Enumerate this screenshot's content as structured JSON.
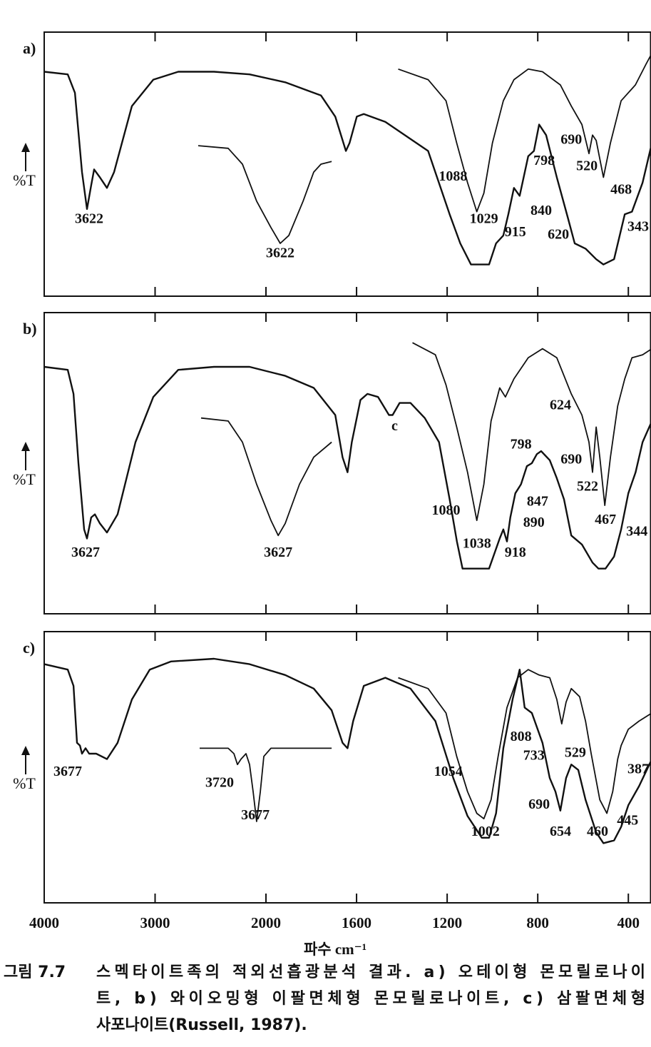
{
  "chart_data": [
    {
      "type": "line",
      "title": "a)",
      "ylabel": "%T",
      "xlim": [
        4000,
        300
      ],
      "x_scale_break": 2000,
      "ylim": [
        0,
        100
      ],
      "xticks": [
        4000,
        3000,
        2000,
        1600,
        1200,
        800,
        400
      ],
      "series": [
        {
          "color": "#111111",
          "x": [
            4000,
            3788,
            3723,
            3659,
            3614,
            3576,
            3550,
            3498,
            3434,
            3370,
            3209,
            3016,
            2791,
            2469,
            2148,
            1915,
            1757,
            1694,
            1647,
            1631,
            1599,
            1568,
            1473,
            1284,
            1189,
            1142,
            1095,
            1015,
            984,
            952,
            930,
            905,
            880,
            842,
            817,
            794,
            763,
            716,
            668,
            637,
            589,
            542,
            510,
            463,
            416,
            384,
            337,
            296
          ],
          "values": [
            85,
            84,
            77,
            47,
            33,
            42,
            48,
            45,
            41,
            47,
            72,
            82,
            85,
            85,
            84,
            81,
            76,
            68,
            55,
            58,
            68,
            69,
            66,
            55,
            31,
            20,
            12,
            12,
            20,
            23,
            31,
            41,
            38,
            53,
            55,
            65,
            61,
            45,
            30,
            20,
            18,
            14,
            12,
            14,
            31,
            32,
            43,
            58
          ]
        },
        {
          "color": "#111111",
          "x": [
            1416,
            1284,
            1205,
            1158,
            1110,
            1069,
            1038,
            1000,
            952,
            905,
            842,
            779,
            700,
            652,
            605,
            574,
            558,
            542,
            510,
            479,
            432,
            369,
            321,
            296
          ],
          "values": [
            86,
            82,
            74,
            58,
            43,
            32,
            39,
            58,
            74,
            82,
            86,
            85,
            80,
            72,
            65,
            54,
            61,
            59,
            45,
            58,
            74,
            80,
            88,
            92
          ]
        },
        {
          "color": "#111111",
          "x": [
            2611,
            2341,
            2212,
            2084,
            1978,
            1937,
            1899,
            1836,
            1789,
            1757,
            1710
          ],
          "values": [
            57,
            56,
            50,
            36,
            26,
            20,
            23,
            36,
            47,
            50,
            51
          ]
        }
      ],
      "annotations": [
        {
          "text": "3622",
          "x": 3595,
          "y": 29
        },
        {
          "text": "3622",
          "x": 1937,
          "y": 16
        },
        {
          "text": "1088",
          "x": 1174,
          "y": 45
        },
        {
          "text": "1029",
          "x": 1038,
          "y": 29
        },
        {
          "text": "915",
          "x": 899,
          "y": 24
        },
        {
          "text": "840",
          "x": 785,
          "y": 32
        },
        {
          "text": "620",
          "x": 709,
          "y": 23
        },
        {
          "text": "798",
          "x": 772,
          "y": 51
        },
        {
          "text": "690",
          "x": 652,
          "y": 59
        },
        {
          "text": "520",
          "x": 583,
          "y": 49
        },
        {
          "text": "468",
          "x": 432,
          "y": 40
        },
        {
          "text": "343",
          "x": 346,
          "y": 26
        }
      ]
    },
    {
      "type": "line",
      "title": "b)",
      "ylabel": "%T",
      "xlim": [
        4000,
        300
      ],
      "x_scale_break": 2000,
      "ylim": [
        0,
        100
      ],
      "xticks": [
        4000,
        3000,
        2000,
        1600,
        1200,
        800,
        400
      ],
      "series": [
        {
          "color": "#111111",
          "x": [
            4000,
            3788,
            3736,
            3691,
            3640,
            3614,
            3576,
            3543,
            3498,
            3434,
            3338,
            3177,
            3016,
            2791,
            2469,
            2148,
            1915,
            1789,
            1694,
            1662,
            1640,
            1621,
            1583,
            1552,
            1505,
            1457,
            1441,
            1410,
            1362,
            1299,
            1236,
            1189,
            1157,
            1132,
            1079,
            1015,
            968,
            952,
            936,
            921,
            899,
            874,
            848,
            826,
            804,
            785,
            747,
            716,
            684,
            652,
            605,
            558,
            532,
            501,
            463,
            432,
            400,
            368,
            337,
            296
          ],
          "values": [
            82,
            81,
            73,
            50,
            28,
            25,
            32,
            33,
            30,
            27,
            33,
            57,
            72,
            81,
            82,
            82,
            79,
            75,
            66,
            52,
            47,
            57,
            71,
            73,
            72,
            66,
            66,
            70,
            70,
            65,
            57,
            38,
            24,
            15,
            15,
            15,
            25,
            28,
            24,
            32,
            40,
            43,
            49,
            50,
            53,
            54,
            51,
            45,
            38,
            26,
            23,
            17,
            15,
            15,
            19,
            28,
            40,
            47,
            57,
            64
          ]
        },
        {
          "color": "#111111",
          "x": [
            1353,
            1252,
            1205,
            1158,
            1110,
            1069,
            1038,
            1006,
            968,
            943,
            905,
            842,
            779,
            716,
            652,
            605,
            574,
            558,
            542,
            526,
            504,
            479,
            447,
            416,
            384,
            337,
            296
          ],
          "values": [
            90,
            86,
            76,
            62,
            47,
            31,
            43,
            64,
            75,
            72,
            78,
            85,
            88,
            85,
            73,
            66,
            57,
            47,
            62,
            52,
            36,
            52,
            69,
            78,
            85,
            86,
            88
          ]
        },
        {
          "color": "#111111",
          "x": [
            2585,
            2341,
            2212,
            2084,
            1978,
            1946,
            1915,
            1852,
            1789,
            1710
          ],
          "values": [
            65,
            64,
            57,
            43,
            31,
            26,
            30,
            43,
            52,
            57
          ]
        }
      ],
      "annotations": [
        {
          "text": "3627",
          "x": 3627,
          "y": 20
        },
        {
          "text": "3627",
          "x": 1946,
          "y": 20
        },
        {
          "text": "c",
          "x": 1432,
          "y": 62
        },
        {
          "text": "1080",
          "x": 1205,
          "y": 34
        },
        {
          "text": "1038",
          "x": 1069,
          "y": 23
        },
        {
          "text": "918",
          "x": 899,
          "y": 20
        },
        {
          "text": "890",
          "x": 817,
          "y": 30
        },
        {
          "text": "847",
          "x": 801,
          "y": 37
        },
        {
          "text": "798",
          "x": 874,
          "y": 56
        },
        {
          "text": "690",
          "x": 652,
          "y": 51
        },
        {
          "text": "624",
          "x": 700,
          "y": 69
        },
        {
          "text": "522",
          "x": 580,
          "y": 42
        },
        {
          "text": "467",
          "x": 501,
          "y": 31
        },
        {
          "text": "344",
          "x": 362,
          "y": 27
        }
      ]
    },
    {
      "type": "line",
      "title": "c)",
      "ylabel": "%T",
      "xlabel": "파수 cm⁻¹",
      "xlim": [
        4000,
        300
      ],
      "x_scale_break": 2000,
      "ylim": [
        0,
        100
      ],
      "xticks": [
        4000,
        3000,
        2000,
        1600,
        1200,
        800,
        400
      ],
      "series": [
        {
          "color": "#111111",
          "x": [
            4000,
            3788,
            3736,
            3704,
            3678,
            3659,
            3627,
            3595,
            3531,
            3434,
            3338,
            3209,
            3048,
            2855,
            2469,
            2148,
            1915,
            1789,
            1710,
            1662,
            1640,
            1615,
            1568,
            1473,
            1362,
            1252,
            1173,
            1110,
            1047,
            1015,
            984,
            952,
            911,
            880,
            858,
            826,
            779,
            747,
            722,
            700,
            675,
            652,
            621,
            589,
            542,
            510,
            463,
            432,
            400,
            353,
            296
          ],
          "values": [
            88,
            86,
            80,
            59,
            58,
            55,
            57,
            55,
            55,
            53,
            59,
            75,
            86,
            89,
            90,
            88,
            84,
            79,
            71,
            59,
            57,
            67,
            80,
            83,
            79,
            67,
            46,
            32,
            24,
            24,
            33,
            57,
            75,
            86,
            72,
            70,
            59,
            46,
            41,
            34,
            46,
            51,
            49,
            38,
            26,
            22,
            23,
            28,
            36,
            43,
            53
          ]
        },
        {
          "color": "#111111",
          "x": [
            1416,
            1284,
            1205,
            1158,
            1110,
            1069,
            1038,
            1006,
            975,
            936,
            889,
            842,
            794,
            747,
            716,
            694,
            675,
            652,
            615,
            589,
            564,
            526,
            495,
            469,
            447,
            432,
            400,
            353,
            296
          ],
          "values": [
            83,
            79,
            70,
            54,
            41,
            33,
            31,
            38,
            54,
            72,
            83,
            86,
            84,
            83,
            75,
            66,
            74,
            79,
            76,
            67,
            55,
            38,
            33,
            41,
            53,
            58,
            64,
            67,
            70
          ]
        },
        {
          "color": "#111111",
          "x": [
            2598,
            2341,
            2289,
            2257,
            2225,
            2180,
            2148,
            2116,
            2084,
            2051,
            2019,
            1978,
            1710
          ],
          "values": [
            57,
            57,
            55,
            51,
            53,
            55,
            51,
            41,
            30,
            41,
            54,
            57,
            57
          ]
        }
      ],
      "annotations": [
        {
          "text": "3677",
          "x": 3788,
          "y": 48
        },
        {
          "text": "3720",
          "x": 2418,
          "y": 44
        },
        {
          "text": "3677",
          "x": 2096,
          "y": 32
        },
        {
          "text": "1054",
          "x": 1195,
          "y": 48
        },
        {
          "text": "1002",
          "x": 1031,
          "y": 26
        },
        {
          "text": "808",
          "x": 874,
          "y": 61
        },
        {
          "text": "733",
          "x": 817,
          "y": 54
        },
        {
          "text": "690",
          "x": 794,
          "y": 36
        },
        {
          "text": "654",
          "x": 700,
          "y": 26
        },
        {
          "text": "529",
          "x": 634,
          "y": 55
        },
        {
          "text": "460",
          "x": 536,
          "y": 26
        },
        {
          "text": "445",
          "x": 403,
          "y": 30
        },
        {
          "text": "387",
          "x": 356,
          "y": 49
        }
      ]
    }
  ],
  "caption": {
    "label": "그림 7.7",
    "lines": [
      "스멕타이트족의 적외선흡광분석 결과. a) 오테이형 몬모릴로나이",
      "트, b) 와이오밍형 이팔면체형 몬모릴로나이트, c) 삼팔면체형",
      "사포나이트(Russell, 1987)."
    ]
  }
}
